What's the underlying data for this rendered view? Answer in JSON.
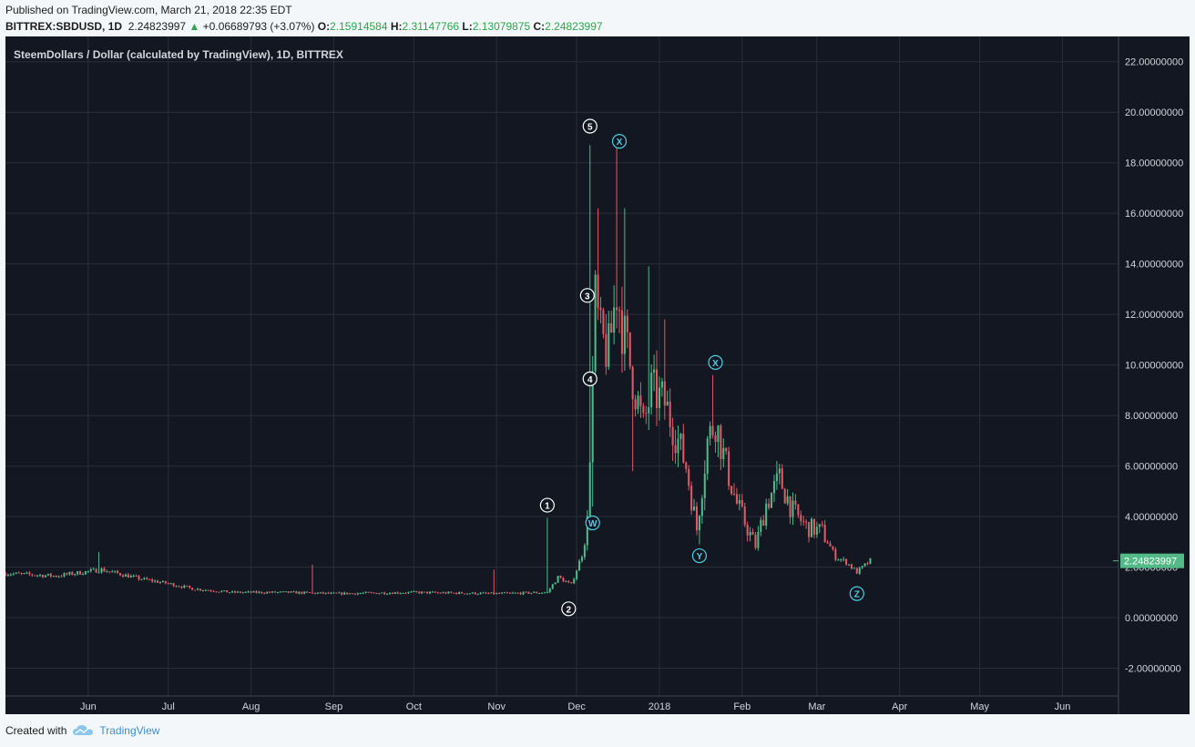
{
  "header": {
    "published": "Published on TradingView.com, March 21, 2018 22:35 EDT",
    "symbol": "BITTREX:SBDUSD, 1D",
    "last": "2.24823997",
    "arrow": "▲",
    "change": "+0.06689793 (+3.07%)",
    "o_label": "O:",
    "o_value": "2.15914584",
    "h_label": "H:",
    "h_value": "2.31147766",
    "l_label": "L:",
    "l_value": "2.13079875",
    "c_label": "C:",
    "c_value": "2.24823997"
  },
  "footer": {
    "created_with": "Created with",
    "brand": "TradingView",
    "logo_icon": "tradingview-cloud-icon"
  },
  "colors": {
    "background": "#131722",
    "grid": "#2a2e39",
    "up": "#4fb98a",
    "down": "#e05a63",
    "price_tag": "#53b987",
    "wave_white": "#ffffff",
    "wave_cyan": "#4dd0e1"
  },
  "chart_data": {
    "type": "candlestick",
    "title": "SteemDollars / Dollar (calculated by TradingView), 1D, BITTREX",
    "ylim": [
      -3.1,
      23.0
    ],
    "y_ticks": [
      -2,
      0,
      2,
      4,
      6,
      8,
      10,
      12,
      14,
      16,
      18,
      20,
      22
    ],
    "y_tick_labels": [
      "-2.00000000",
      "0.00000000",
      "2.00000000",
      "4.00000000",
      "6.00000000",
      "8.00000000",
      "10.00000000",
      "12.00000000",
      "14.00000000",
      "16.00000000",
      "18.00000000",
      "20.00000000",
      "22.00000000"
    ],
    "x_tick_labels": [
      "Jun",
      "Jul",
      "Aug",
      "Sep",
      "Oct",
      "Nov",
      "Dec",
      "2018",
      "Feb",
      "Mar",
      "Apr",
      "May",
      "Jun"
    ],
    "x_tick_dates": [
      "2017-06-01",
      "2017-07-01",
      "2017-08-01",
      "2017-09-01",
      "2017-10-01",
      "2017-11-01",
      "2017-12-01",
      "2018-01-01",
      "2018-02-01",
      "2018-03-01",
      "2018-04-01",
      "2018-05-01",
      "2018-06-01"
    ],
    "x_range": [
      "2017-05-01",
      "2018-06-22"
    ],
    "last_price": 2.24823997,
    "last_price_label": "2.24823997",
    "anchors": [
      [
        "2017-05-01",
        1.75
      ],
      [
        "2017-05-20",
        1.65
      ],
      [
        "2017-06-06",
        1.9
      ],
      [
        "2017-06-20",
        1.55
      ],
      [
        "2017-07-01",
        1.35
      ],
      [
        "2017-07-10",
        1.15
      ],
      [
        "2017-07-25",
        1.0
      ],
      [
        "2017-08-15",
        1.0
      ],
      [
        "2017-09-01",
        0.95
      ],
      [
        "2017-10-01",
        1.0
      ],
      [
        "2017-11-01",
        0.95
      ],
      [
        "2017-11-20",
        1.0
      ],
      [
        "2017-11-24",
        1.6
      ],
      [
        "2017-11-29",
        1.3
      ],
      [
        "2017-12-03",
        2.5
      ],
      [
        "2017-12-05",
        3.8
      ],
      [
        "2017-12-07",
        9.5
      ],
      [
        "2017-12-08",
        12.5
      ],
      [
        "2017-12-10",
        11.0
      ],
      [
        "2017-12-13",
        10.5
      ],
      [
        "2017-12-16",
        13.0
      ],
      [
        "2017-12-19",
        11.0
      ],
      [
        "2017-12-23",
        9.0
      ],
      [
        "2017-12-26",
        7.5
      ],
      [
        "2017-12-29",
        9.0
      ],
      [
        "2018-01-03",
        8.5
      ],
      [
        "2018-01-08",
        7.0
      ],
      [
        "2018-01-11",
        6.0
      ],
      [
        "2018-01-15",
        3.5
      ],
      [
        "2018-01-19",
        7.0
      ],
      [
        "2018-01-22",
        7.8
      ],
      [
        "2018-01-26",
        6.0
      ],
      [
        "2018-01-30",
        4.5
      ],
      [
        "2018-02-06",
        2.8
      ],
      [
        "2018-02-10",
        4.5
      ],
      [
        "2018-02-15",
        5.5
      ],
      [
        "2018-02-20",
        4.2
      ],
      [
        "2018-02-25",
        3.6
      ],
      [
        "2018-03-03",
        3.4
      ],
      [
        "2018-03-08",
        2.4
      ],
      [
        "2018-03-12",
        2.2
      ],
      [
        "2018-03-16",
        1.8
      ],
      [
        "2018-03-21",
        2.25
      ]
    ],
    "spikes": [
      [
        "2017-06-05",
        2.6
      ],
      [
        "2017-08-24",
        2.1
      ],
      [
        "2017-10-31",
        1.9
      ],
      [
        "2017-11-20",
        3.95
      ],
      [
        "2017-12-06",
        18.7
      ],
      [
        "2017-12-09",
        16.2
      ],
      [
        "2017-12-16",
        18.6
      ],
      [
        "2017-12-19",
        16.2
      ],
      [
        "2017-12-28",
        13.9
      ],
      [
        "2018-01-03",
        11.8
      ],
      [
        "2018-01-21",
        9.6
      ],
      [
        "2018-02-14",
        6.2
      ]
    ],
    "wicks_low": [
      [
        "2017-12-07",
        4.4
      ],
      [
        "2017-12-22",
        5.8
      ],
      [
        "2018-01-16",
        2.9
      ]
    ],
    "annotations": [
      {
        "label": "1",
        "date": "2017-11-20",
        "value": 4.45,
        "style": "white"
      },
      {
        "label": "2",
        "date": "2017-11-28",
        "value": 0.35,
        "style": "white"
      },
      {
        "label": "3",
        "date": "2017-12-05",
        "value": 12.75,
        "style": "white"
      },
      {
        "label": "4",
        "date": "2017-12-06",
        "value": 9.45,
        "style": "white"
      },
      {
        "label": "5",
        "date": "2017-12-06",
        "value": 19.45,
        "style": "white"
      },
      {
        "label": "W",
        "date": "2017-12-07",
        "value": 3.75,
        "style": "cyan"
      },
      {
        "label": "X",
        "date": "2017-12-17",
        "value": 18.85,
        "style": "cyan"
      },
      {
        "label": "Y",
        "date": "2018-01-16",
        "value": 2.45,
        "style": "cyan"
      },
      {
        "label": "X",
        "date": "2018-01-22",
        "value": 10.1,
        "style": "cyan"
      },
      {
        "label": "Z",
        "date": "2018-03-16",
        "value": 0.95,
        "style": "cyan"
      }
    ]
  }
}
